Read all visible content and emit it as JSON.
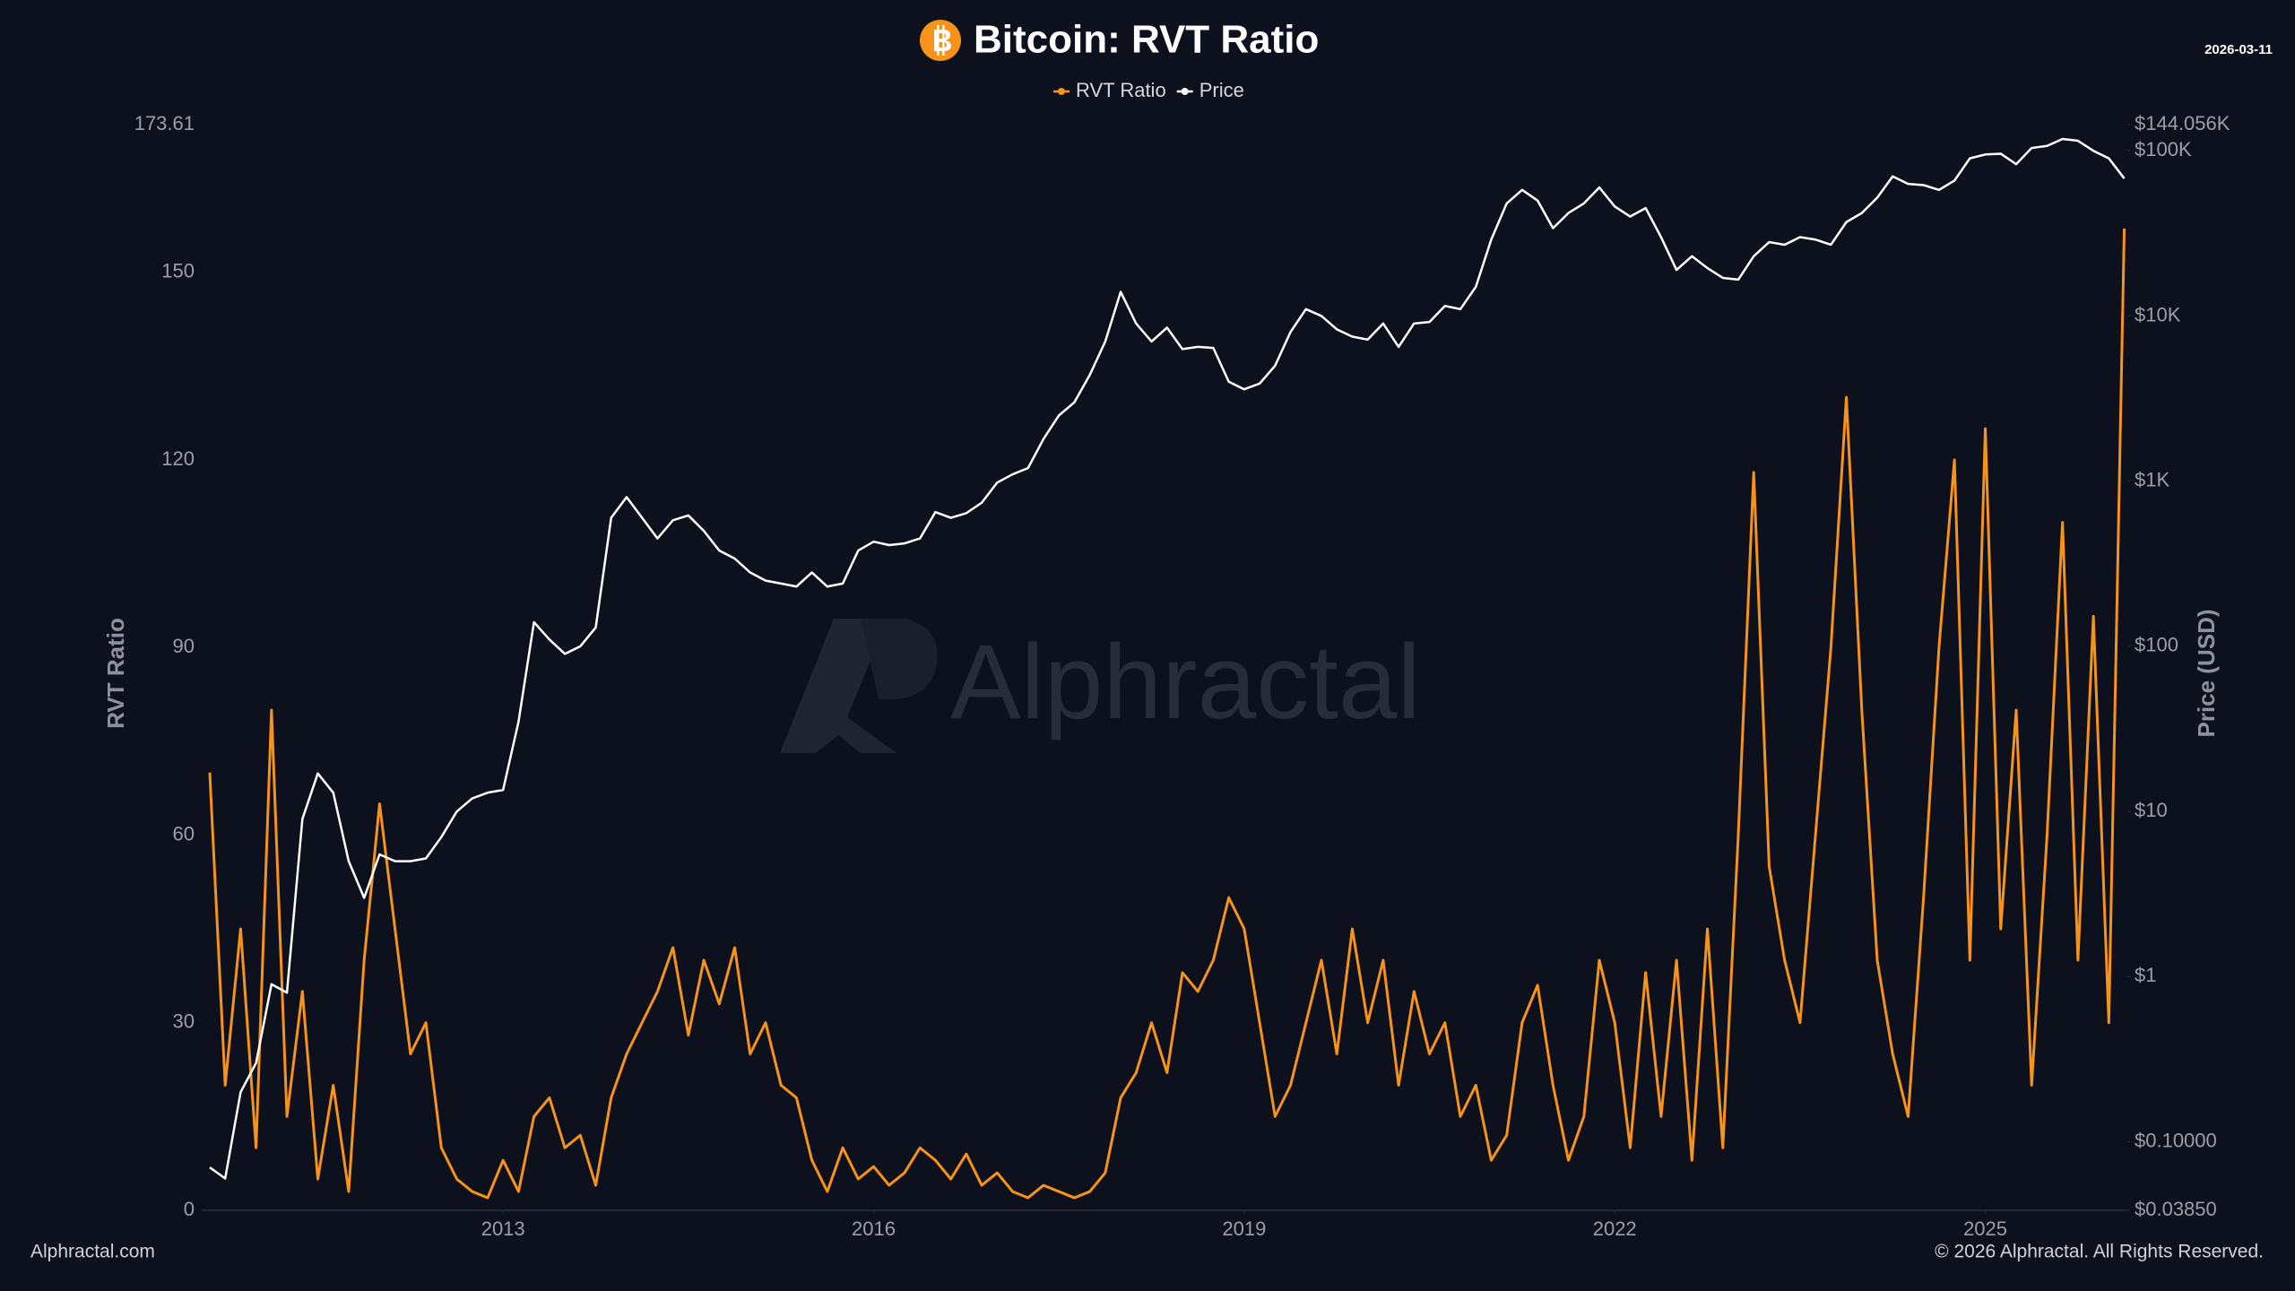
{
  "chart_data": {
    "type": "line",
    "title": "Bitcoin: RVT Ratio",
    "date": "2026-03-11",
    "y_label": "RVT Ratio",
    "y2_label": "Price (USD)",
    "watermark": "Alphractal",
    "footer_left": "Alphractal.com",
    "footer_right": "© 2026 Alphractal. All Rights Reserved.",
    "legend": "top",
    "grid": false,
    "y2scale": "log",
    "xlim": [
      2010.56,
      2026.15
    ],
    "xticks": [
      2013,
      2016,
      2019,
      2022,
      2025
    ],
    "ylim": [
      0,
      173.61
    ],
    "yticks": [
      0,
      30,
      60,
      90,
      120,
      150,
      173.61
    ],
    "y2lim": [
      0.0385,
      144056
    ],
    "y2ticks": [
      {
        "value": 0.0385,
        "label": "$0.03850"
      },
      {
        "value": 0.1,
        "label": "$0.10000"
      },
      {
        "value": 1,
        "label": "$1"
      },
      {
        "value": 10,
        "label": "$10"
      },
      {
        "value": 100,
        "label": "$100"
      },
      {
        "value": 1000,
        "label": "$1K"
      },
      {
        "value": 10000,
        "label": "$10K"
      },
      {
        "value": 100000,
        "label": "$100K"
      },
      {
        "value": 144056,
        "label": "$144.056K"
      }
    ],
    "x": [
      2010.625,
      2010.75,
      2010.875,
      2011,
      2011.125,
      2011.25,
      2011.375,
      2011.5,
      2011.625,
      2011.75,
      2011.875,
      2012,
      2012.125,
      2012.25,
      2012.375,
      2012.5,
      2012.625,
      2012.75,
      2012.875,
      2013,
      2013.125,
      2013.25,
      2013.375,
      2013.5,
      2013.625,
      2013.75,
      2013.875,
      2014,
      2014.125,
      2014.25,
      2014.375,
      2014.5,
      2014.625,
      2014.75,
      2014.875,
      2015,
      2015.125,
      2015.25,
      2015.375,
      2015.5,
      2015.625,
      2015.75,
      2015.875,
      2016,
      2016.125,
      2016.25,
      2016.375,
      2016.5,
      2016.625,
      2016.75,
      2016.875,
      2017,
      2017.125,
      2017.25,
      2017.375,
      2017.5,
      2017.625,
      2017.75,
      2017.875,
      2018,
      2018.125,
      2018.25,
      2018.375,
      2018.5,
      2018.625,
      2018.75,
      2018.875,
      2019,
      2019.125,
      2019.25,
      2019.375,
      2019.5,
      2019.625,
      2019.75,
      2019.875,
      2020,
      2020.125,
      2020.25,
      2020.375,
      2020.5,
      2020.625,
      2020.75,
      2020.875,
      2021,
      2021.125,
      2021.25,
      2021.375,
      2021.5,
      2021.625,
      2021.75,
      2021.875,
      2022,
      2022.125,
      2022.25,
      2022.375,
      2022.5,
      2022.625,
      2022.75,
      2022.875,
      2023,
      2023.125,
      2023.25,
      2023.375,
      2023.5,
      2023.625,
      2023.75,
      2023.875,
      2024,
      2024.125,
      2024.25,
      2024.375,
      2024.5,
      2024.625,
      2024.75,
      2024.875,
      2025,
      2025.125,
      2025.25,
      2025.375,
      2025.5,
      2025.625,
      2025.75,
      2025.875,
      2026,
      2026.125
    ],
    "series": [
      {
        "name": "RVT Ratio",
        "color": "#f7931a",
        "values": [
          70,
          20,
          45,
          10,
          80,
          15,
          35,
          5,
          20,
          3,
          40,
          65,
          45,
          25,
          30,
          10,
          5,
          3,
          2,
          8,
          3,
          15,
          18,
          10,
          12,
          4,
          18,
          25,
          30,
          35,
          42,
          28,
          40,
          33,
          42,
          25,
          30,
          20,
          18,
          8,
          3,
          10,
          5,
          7,
          4,
          6,
          10,
          8,
          5,
          9,
          4,
          6,
          3,
          2,
          4,
          3,
          2,
          3,
          6,
          18,
          22,
          30,
          22,
          38,
          35,
          40,
          50,
          45,
          30,
          15,
          20,
          30,
          40,
          25,
          45,
          30,
          40,
          20,
          35,
          25,
          30,
          15,
          20,
          8,
          12,
          30,
          36,
          20,
          8,
          15,
          40,
          30,
          10,
          38,
          15,
          40,
          8,
          45,
          10,
          60,
          118,
          55,
          40,
          30,
          60,
          90,
          130,
          80,
          40,
          25,
          15,
          50,
          90,
          120,
          40,
          125,
          45,
          80,
          20,
          60,
          110,
          40,
          95,
          30,
          157
        ]
      },
      {
        "name": "Price",
        "color": "#ffffff",
        "axis": "y2",
        "values": [
          0.07,
          0.06,
          0.2,
          0.3,
          0.9,
          0.8,
          9,
          17,
          13,
          5,
          3,
          5.5,
          5,
          5,
          5.2,
          7,
          10,
          12,
          13,
          13.5,
          35,
          140,
          110,
          90,
          100,
          130,
          600,
          800,
          600,
          450,
          580,
          620,
          500,
          380,
          340,
          280,
          250,
          240,
          230,
          280,
          230,
          240,
          380,
          430,
          410,
          420,
          450,
          650,
          600,
          640,
          740,
          980,
          1100,
          1200,
          1800,
          2500,
          3000,
          4400,
          7000,
          14000,
          9000,
          7000,
          8500,
          6300,
          6500,
          6400,
          4000,
          3600,
          3900,
          5000,
          8000,
          11000,
          10000,
          8300,
          7500,
          7200,
          9000,
          6500,
          9000,
          9200,
          11500,
          11000,
          15000,
          29000,
          48000,
          58000,
          50000,
          34000,
          42000,
          48000,
          60000,
          46000,
          40000,
          45000,
          30000,
          19000,
          23000,
          19500,
          17000,
          16600,
          23000,
          28000,
          27000,
          30000,
          29000,
          27000,
          37000,
          42000,
          52000,
          70000,
          63000,
          62000,
          58000,
          66000,
          90000,
          95000,
          96000,
          83000,
          104000,
          107000,
          118000,
          115000,
          100000,
          90000,
          68000
        ]
      }
    ]
  }
}
